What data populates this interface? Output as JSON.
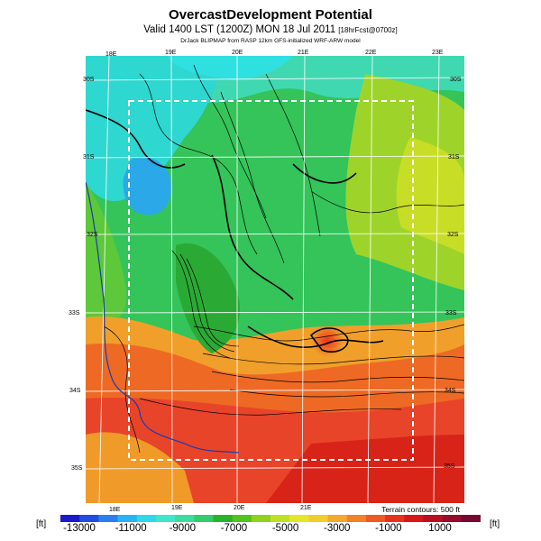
{
  "header": {
    "title": "OvercastDevelopment Potential",
    "subtitle": "Valid 1400 LST (1200Z) MON 18 Jul 2011",
    "subtitle_tag": "[18hrFcst@0700z]",
    "credit": "DrJack BLIPMAP from RASP 12km GFS-initialized WRF-ARW model"
  },
  "map": {
    "top_longitudes": [
      "18E",
      "19E",
      "20E",
      "21E",
      "22E",
      "23E"
    ],
    "bottom_longitudes": [
      "18E",
      "19E",
      "20E",
      "21E"
    ],
    "left_latitudes": [
      "30S",
      "31S",
      "32S",
      "33S",
      "34S",
      "35S"
    ],
    "right_latitudes": [
      "30S",
      "31S",
      "32S",
      "33S",
      "34S",
      "35S"
    ],
    "terrain_note": "Terrain contours: 500 ft"
  },
  "colorbar": {
    "unit_left": "[ft]",
    "unit_right": "[ft]",
    "ticks": [
      "-13000",
      "-11000",
      "-9000",
      "-7000",
      "-5000",
      "-3000",
      "-1000",
      "1000"
    ],
    "colors": [
      "#1a1acc",
      "#1f4fe0",
      "#2a7ff0",
      "#27b3f5",
      "#2fd8e8",
      "#3fe6c8",
      "#3cdca0",
      "#34cc6a",
      "#28b428",
      "#52c41c",
      "#8ed21c",
      "#bfe022",
      "#e6e628",
      "#f2cc2a",
      "#f5a82a",
      "#f28228",
      "#ee5a22",
      "#e8321e",
      "#d81818",
      "#b81020",
      "#960c2a",
      "#780830"
    ]
  }
}
